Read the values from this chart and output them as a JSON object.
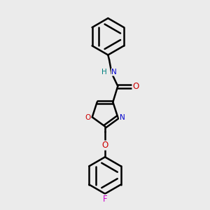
{
  "bg_color": "#ebebeb",
  "bond_color": "#000000",
  "bond_width": 1.8,
  "atom_colors": {
    "N": "#0000cc",
    "O": "#cc0000",
    "F": "#cc00cc",
    "H": "#008080"
  },
  "figsize": [
    3.0,
    3.0
  ],
  "dpi": 100,
  "xlim": [
    0.5,
    2.5
  ],
  "ylim": [
    0.0,
    3.4
  ]
}
